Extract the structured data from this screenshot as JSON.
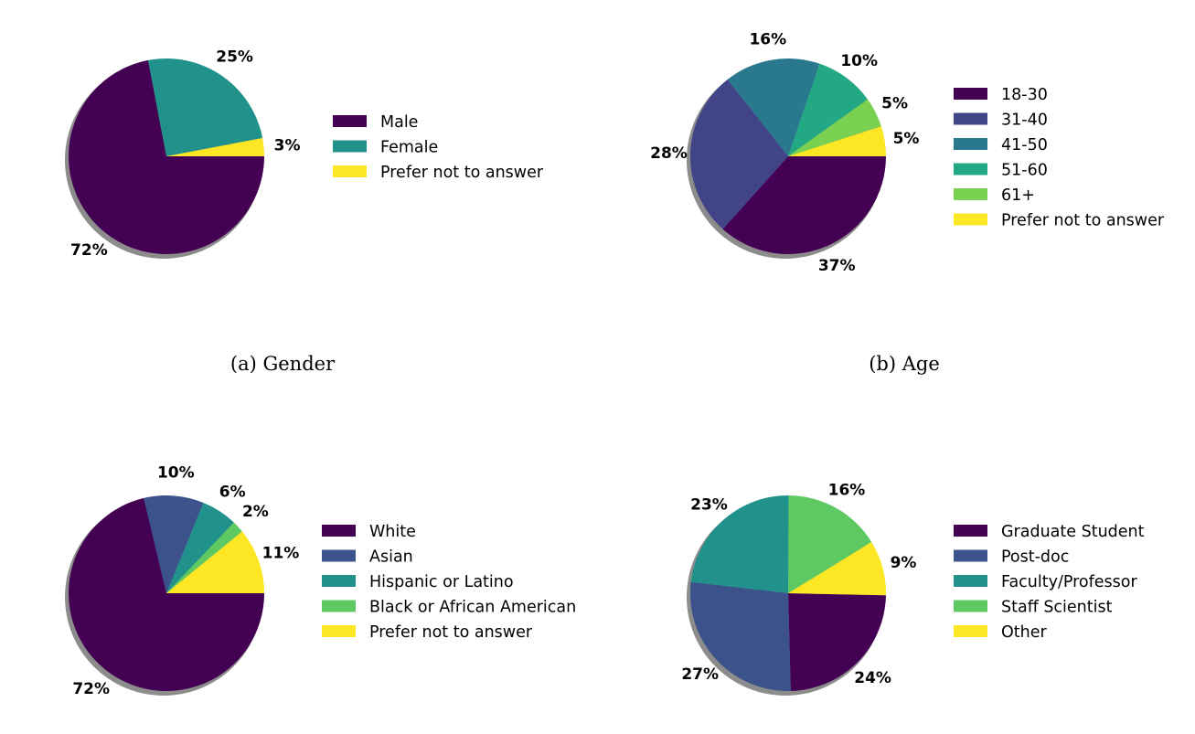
{
  "chart_data": [
    {
      "type": "pie",
      "caption": "(a) Gender",
      "categories": [
        "Male",
        "Female",
        "Prefer not to answer"
      ],
      "values": [
        72,
        25,
        3
      ],
      "labels": [
        "72%",
        "25%",
        "3%"
      ],
      "colors": [
        "#440154",
        "#21918c",
        "#fde725"
      ],
      "legend_position": "right"
    },
    {
      "type": "pie",
      "caption": "(b) Age",
      "categories": [
        "18-30",
        "31-40",
        "41-50",
        "51-60",
        "61+",
        "Prefer not to answer"
      ],
      "values": [
        37,
        28,
        16,
        10,
        5,
        5
      ],
      "labels": [
        "37%",
        "28%",
        "16%",
        "10%",
        "5%",
        "5%"
      ],
      "colors": [
        "#440154",
        "#414487",
        "#2a788e",
        "#22a884",
        "#7ad151",
        "#fde725"
      ],
      "legend_position": "right"
    },
    {
      "type": "pie",
      "caption": "",
      "categories": [
        "White",
        "Asian",
        "Hispanic or Latino",
        "Black or African American",
        "Prefer not to answer"
      ],
      "values": [
        72,
        10,
        6,
        2,
        11
      ],
      "labels": [
        "72%",
        "10%",
        "6%",
        "2%",
        "11%"
      ],
      "colors": [
        "#440154",
        "#3b528b",
        "#21918c",
        "#5ec962",
        "#fde725"
      ],
      "legend_position": "right"
    },
    {
      "type": "pie",
      "caption": "",
      "categories": [
        "Graduate Student",
        "Post-doc",
        "Faculty/Professor",
        "Staff Scientist",
        "Other"
      ],
      "values": [
        24,
        27,
        23,
        16,
        9
      ],
      "labels": [
        "24%",
        "27%",
        "23%",
        "16%",
        "9%"
      ],
      "colors": [
        "#440154",
        "#3b528b",
        "#21918c",
        "#5ec962",
        "#fde725"
      ],
      "legend_position": "right"
    }
  ]
}
